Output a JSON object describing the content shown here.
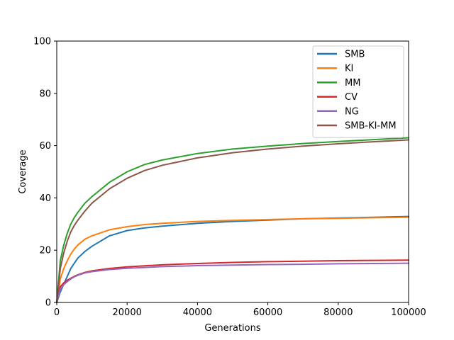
{
  "chart_data": {
    "type": "line",
    "title": "",
    "xlabel": "Generations",
    "ylabel": "Coverage",
    "xlim": [
      0,
      100000
    ],
    "ylim": [
      0,
      100
    ],
    "xticks": [
      0,
      20000,
      40000,
      60000,
      80000,
      100000
    ],
    "yticks": [
      0,
      20,
      40,
      60,
      80,
      100
    ],
    "grid": false,
    "legend_position": "top-right",
    "series": [
      {
        "name": "SMB",
        "color": "#1f77b4",
        "x": [
          0,
          1000,
          2000,
          3000,
          4000,
          5000,
          6000,
          8000,
          10000,
          15000,
          20000,
          25000,
          30000,
          40000,
          50000,
          60000,
          70000,
          80000,
          90000,
          100000
        ],
        "y": [
          0,
          4,
          7,
          10,
          13,
          15,
          17,
          19.5,
          21.5,
          25.5,
          27.5,
          28.5,
          29.2,
          30.3,
          31,
          31.5,
          32,
          32.3,
          32.6,
          32.9
        ]
      },
      {
        "name": "KI",
        "color": "#ff7f0e",
        "x": [
          0,
          1000,
          2000,
          3000,
          4000,
          5000,
          6000,
          8000,
          10000,
          15000,
          20000,
          25000,
          30000,
          40000,
          50000,
          60000,
          70000,
          80000,
          90000,
          100000
        ],
        "y": [
          0,
          9,
          13,
          16,
          18.5,
          20.5,
          22,
          24.2,
          25.5,
          27.8,
          29,
          29.8,
          30.3,
          31,
          31.4,
          31.7,
          32,
          32.2,
          32.4,
          32.6
        ]
      },
      {
        "name": "MM",
        "color": "#2ca02c",
        "x": [
          0,
          1000,
          2000,
          3000,
          4000,
          5000,
          6000,
          8000,
          10000,
          15000,
          20000,
          25000,
          30000,
          40000,
          50000,
          60000,
          70000,
          80000,
          90000,
          100000
        ],
        "y": [
          0,
          16,
          22,
          26.5,
          30,
          32.5,
          34.5,
          38,
          40.5,
          46,
          50,
          52.8,
          54.5,
          57,
          58.7,
          59.8,
          60.8,
          61.6,
          62.3,
          63
        ]
      },
      {
        "name": "CV",
        "color": "#d62728",
        "x": [
          0,
          1000,
          2000,
          3000,
          4000,
          5000,
          6000,
          8000,
          10000,
          15000,
          20000,
          25000,
          30000,
          40000,
          50000,
          60000,
          70000,
          80000,
          90000,
          100000
        ],
        "y": [
          0,
          6,
          7.5,
          8.5,
          9.3,
          10,
          10.6,
          11.5,
          12.1,
          13,
          13.6,
          14,
          14.4,
          14.9,
          15.3,
          15.6,
          15.8,
          16,
          16.1,
          16.2
        ]
      },
      {
        "name": "NG",
        "color": "#9467bd",
        "x": [
          0,
          1000,
          2000,
          3000,
          4000,
          5000,
          6000,
          8000,
          10000,
          15000,
          20000,
          25000,
          30000,
          40000,
          50000,
          60000,
          70000,
          80000,
          90000,
          100000
        ],
        "y": [
          0,
          5,
          6.8,
          8,
          9,
          9.8,
          10.4,
          11.3,
          11.8,
          12.6,
          13.1,
          13.4,
          13.7,
          14.1,
          14.3,
          14.5,
          14.6,
          14.8,
          14.9,
          15
        ]
      },
      {
        "name": "SMB-KI-MM",
        "color": "#8c564b",
        "x": [
          0,
          1000,
          2000,
          3000,
          4000,
          5000,
          6000,
          8000,
          10000,
          15000,
          20000,
          25000,
          30000,
          40000,
          50000,
          60000,
          70000,
          80000,
          90000,
          100000
        ],
        "y": [
          0,
          13,
          19,
          23.5,
          27,
          29.5,
          31.5,
          35,
          38,
          43.5,
          47.5,
          50.5,
          52.5,
          55.3,
          57.3,
          58.7,
          59.8,
          60.7,
          61.5,
          62.2
        ]
      }
    ]
  }
}
